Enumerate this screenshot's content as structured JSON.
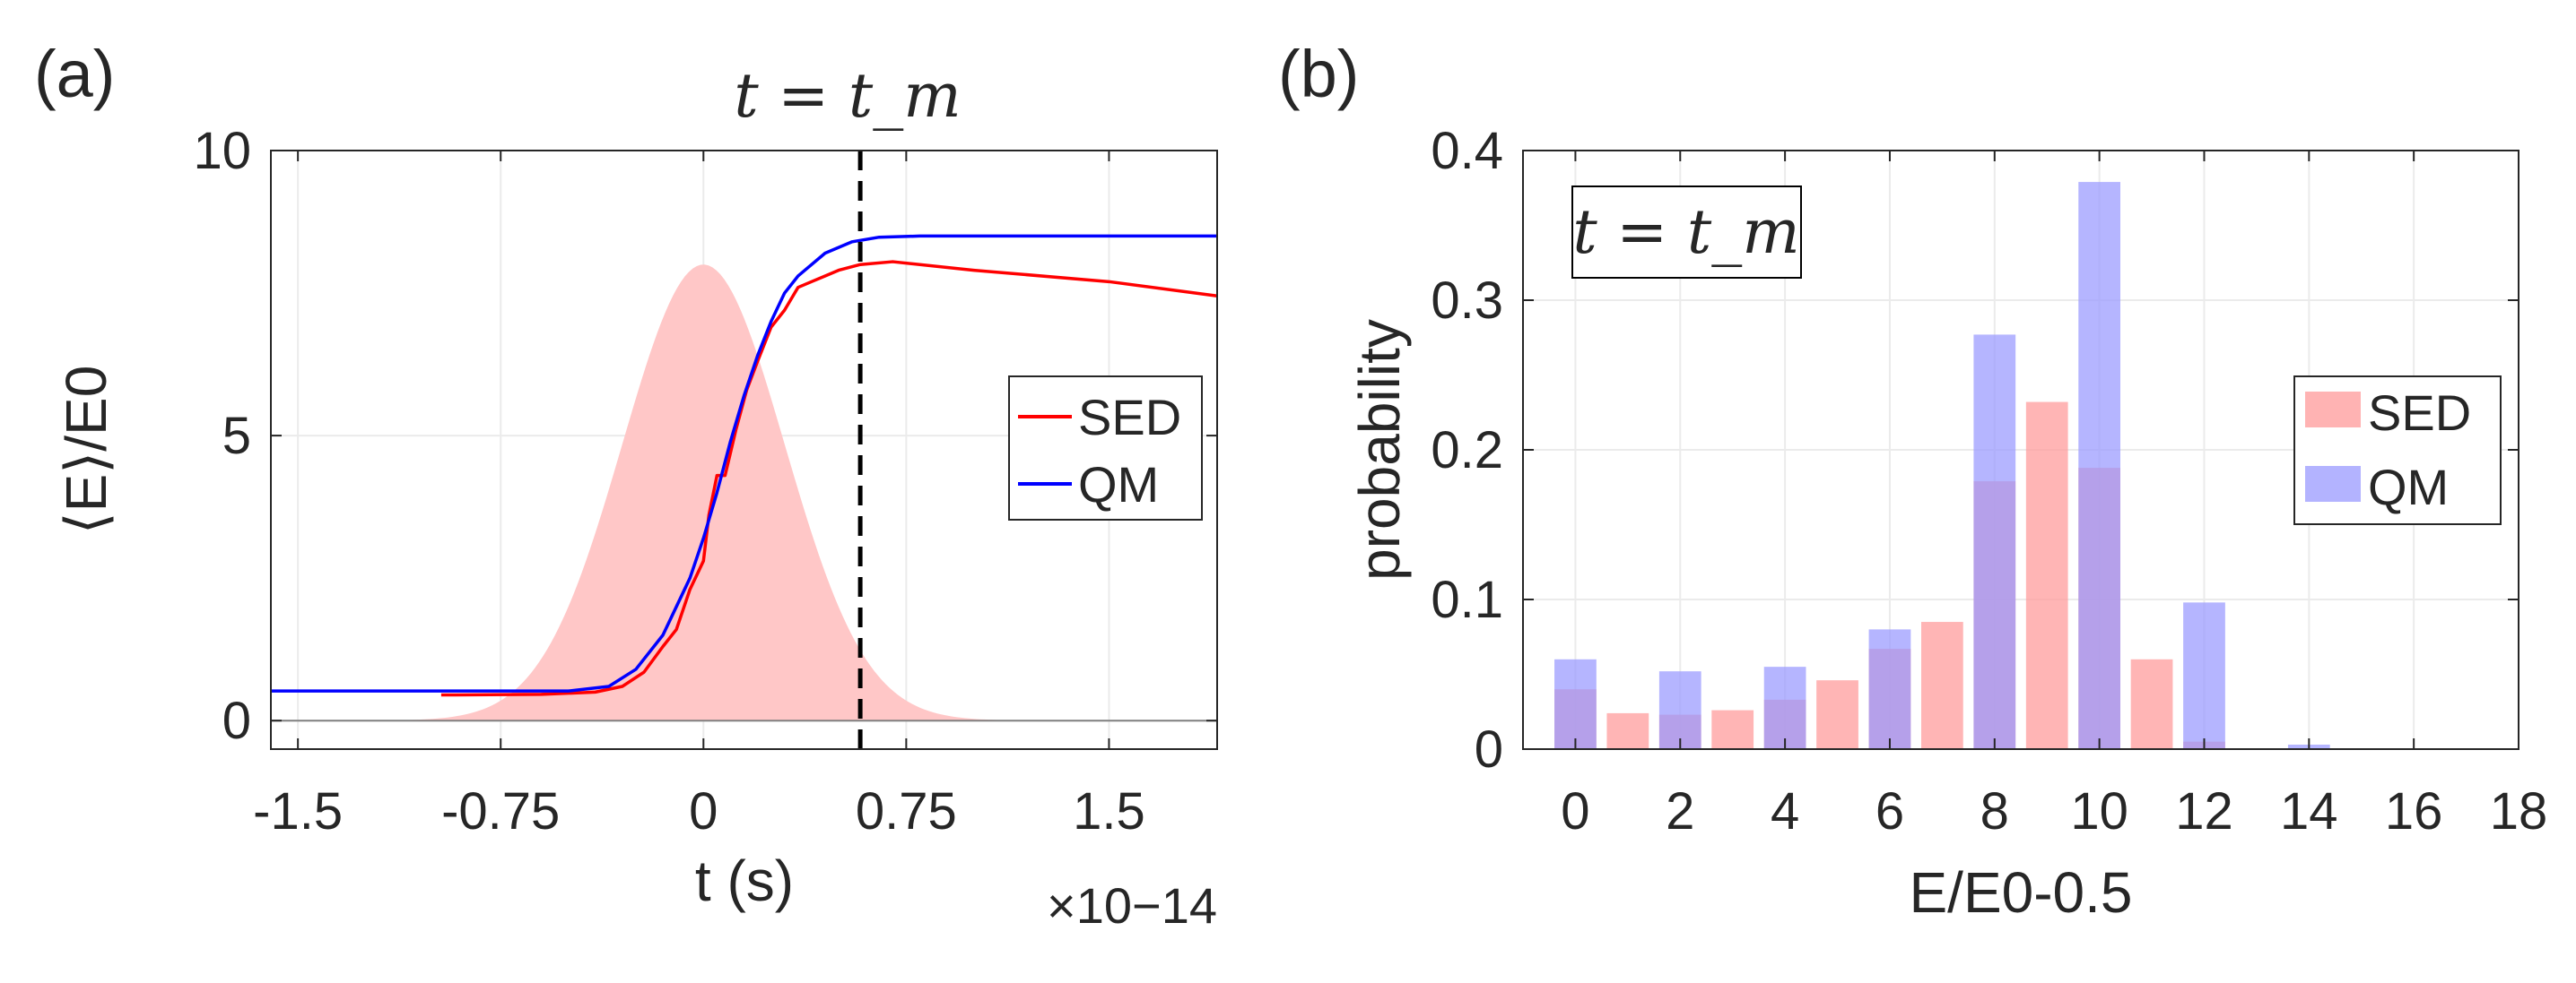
{
  "chart_data": [
    {
      "type": "line",
      "panel_label": "(a)",
      "xlabel": "t (s)",
      "ylabel": "⟨E⟩/E0",
      "x_exponent": "×10−14",
      "xlim": [
        -1.6,
        1.9
      ],
      "ylim": [
        -0.5,
        10
      ],
      "xticks": [
        -1.5,
        -0.75,
        0,
        0.75,
        1.5
      ],
      "xtick_labels": [
        "-1.5",
        "-0.75",
        "0",
        "0.75",
        "1.5"
      ],
      "yticks": [
        0,
        5,
        10
      ],
      "ytick_labels": [
        "0",
        "5",
        "10"
      ],
      "grid": true,
      "legend_position": "right",
      "annotation": "t = t_m",
      "vline_x": 0.58,
      "colors": {
        "SED": "#ff0000",
        "QM": "#0000ff",
        "pulse": "#ffc7c7"
      },
      "pulse": {
        "center": 0,
        "sigma": 0.3,
        "amplitude": 8.0
      },
      "series": [
        {
          "name": "SED",
          "points": [
            [
              -0.97,
              0.45
            ],
            [
              -0.6,
              0.46
            ],
            [
              -0.4,
              0.5
            ],
            [
              -0.3,
              0.6
            ],
            [
              -0.22,
              0.85
            ],
            [
              -0.15,
              1.3
            ],
            [
              -0.1,
              1.6
            ],
            [
              -0.05,
              2.3
            ],
            [
              0.0,
              2.8
            ],
            [
              0.02,
              3.6
            ],
            [
              0.05,
              4.3
            ],
            [
              0.08,
              4.3
            ],
            [
              0.12,
              5.1
            ],
            [
              0.16,
              5.8
            ],
            [
              0.2,
              6.3
            ],
            [
              0.25,
              6.9
            ],
            [
              0.3,
              7.2
            ],
            [
              0.35,
              7.6
            ],
            [
              0.4,
              7.7
            ],
            [
              0.45,
              7.8
            ],
            [
              0.5,
              7.9
            ],
            [
              0.58,
              8.0
            ],
            [
              0.7,
              8.05
            ],
            [
              1.0,
              7.9
            ],
            [
              1.5,
              7.7
            ],
            [
              1.9,
              7.45
            ]
          ]
        },
        {
          "name": "QM",
          "points": [
            [
              -1.6,
              0.52
            ],
            [
              -0.5,
              0.52
            ],
            [
              -0.35,
              0.6
            ],
            [
              -0.25,
              0.9
            ],
            [
              -0.15,
              1.5
            ],
            [
              -0.05,
              2.5
            ],
            [
              0.0,
              3.2
            ],
            [
              0.05,
              4.0
            ],
            [
              0.1,
              4.9
            ],
            [
              0.15,
              5.7
            ],
            [
              0.2,
              6.4
            ],
            [
              0.25,
              7.0
            ],
            [
              0.3,
              7.5
            ],
            [
              0.35,
              7.8
            ],
            [
              0.45,
              8.2
            ],
            [
              0.55,
              8.4
            ],
            [
              0.65,
              8.48
            ],
            [
              0.8,
              8.5
            ],
            [
              1.9,
              8.5
            ]
          ]
        }
      ]
    },
    {
      "type": "bar",
      "panel_label": "(b)",
      "xlabel": "E/E0-0.5",
      "ylabel": "probability",
      "xlim": [
        -1,
        18
      ],
      "ylim": [
        0,
        0.4
      ],
      "xticks": [
        0,
        2,
        4,
        6,
        8,
        10,
        12,
        14,
        16,
        18
      ],
      "yticks": [
        0,
        0.1,
        0.2,
        0.3,
        0.4
      ],
      "ytick_labels": [
        "0",
        "0.1",
        "0.2",
        "0.3",
        "0.4"
      ],
      "grid": true,
      "legend_position": "right",
      "annotation": "t = t_m",
      "colors": {
        "SED": "#ff9999",
        "QM": "#9999ff"
      },
      "categories": [
        0,
        1,
        2,
        3,
        4,
        5,
        6,
        7,
        8,
        9,
        10,
        11,
        12,
        13,
        14
      ],
      "series": [
        {
          "name": "SED",
          "values": [
            0.04,
            0.024,
            0.023,
            0.026,
            0.033,
            0.046,
            0.067,
            0.085,
            0.179,
            0.232,
            0.188,
            0.06,
            0.005,
            0,
            0
          ]
        },
        {
          "name": "QM",
          "values": [
            0.06,
            0,
            0.052,
            0,
            0.055,
            0,
            0.08,
            0,
            0.277,
            0,
            0.379,
            0,
            0.098,
            0,
            0.003
          ]
        }
      ]
    }
  ]
}
